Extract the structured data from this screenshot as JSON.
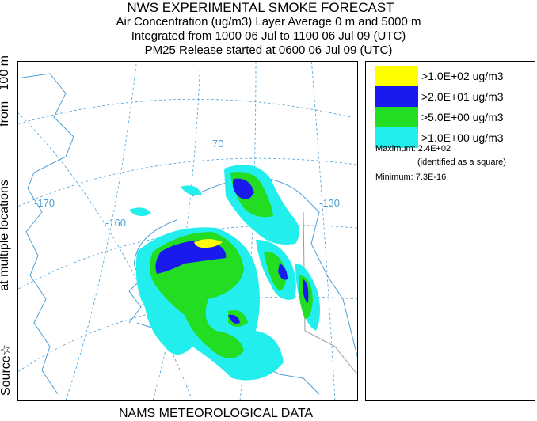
{
  "header": {
    "title": "NWS EXPERIMENTAL SMOKE FORECAST",
    "line1": "Air Concentration (ug/m3) Layer Average    0 m and  5000 m",
    "line2": "Integrated from 1000 06 Jul to 1100 06 Jul 09 (UTC)",
    "line3": "PM25 Release started at 0600 06 Jul 09 (UTC)"
  },
  "side_label": {
    "source": "Source",
    "at_multiple": "at multiple locations",
    "from": "from",
    "height": "100 m"
  },
  "footer": "NAMS METEOROLOGICAL DATA",
  "map": {
    "grid_labels": {
      "lon_170": "-170",
      "lon_160": "-160",
      "lon_130": "-130",
      "lat_70": "70"
    }
  },
  "legend": {
    "items": [
      {
        "label": ">1.0E+02 ug/m3",
        "color": "#ffff00"
      },
      {
        "label": ">2.0E+01 ug/m3",
        "color": "#1a1aee"
      },
      {
        "label": ">5.0E+00 ug/m3",
        "color": "#22dd22"
      },
      {
        "label": ">1.0E+00 ug/m3",
        "color": "#22eeee"
      }
    ],
    "maximum": "Maximum: 2.4E+02",
    "identified": "(identified as a square)",
    "minimum": "Minimum: 7.3E-16"
  }
}
